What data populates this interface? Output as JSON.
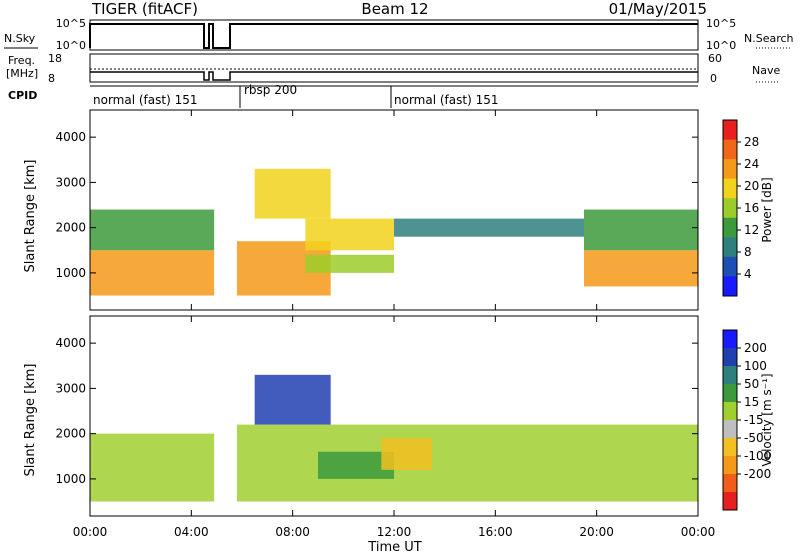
{
  "header": {
    "title_left": "TIGER (fitACF)",
    "title_center": "Beam 12",
    "title_right": "01/May/2015"
  },
  "top_panels": {
    "nsky": {
      "label": "N.Sky",
      "ticks": [
        "10^5",
        "10^0"
      ],
      "right_ticks": [
        "10^5",
        "10^0"
      ],
      "right_label": "N.Search"
    },
    "freq": {
      "label_line1": "Freq.",
      "label_line2": "[MHz]",
      "ticks": [
        "18",
        "8"
      ],
      "right_ticks": [
        "60",
        "0"
      ],
      "right_label": "Nave"
    },
    "cpid": {
      "label": "CPID",
      "segments": [
        "normal (fast) 151",
        "rbsp 200",
        "normal (fast) 151"
      ]
    }
  },
  "colors": {
    "power": [
      "#1a1aff",
      "#1e4fb4",
      "#2f7f7f",
      "#3c9a3c",
      "#9ccc2a",
      "#f2d21c",
      "#f59a18",
      "#f2661a",
      "#e81f1f"
    ],
    "velocity": [
      "#1a1aff",
      "#2040b0",
      "#2f7f7f",
      "#3c9a3c",
      "#a0d030",
      "#bfbfbf",
      "#f2c020",
      "#f59a18",
      "#f25c1a",
      "#e81f1f"
    ]
  },
  "chart_data": [
    {
      "type": "heatmap",
      "panel": "power",
      "ylabel": "Slant Range [km]",
      "ylim": [
        180,
        4600
      ],
      "yticks": [
        "1000",
        "2000",
        "3000",
        "4000"
      ],
      "colorbar_label": "Power [dB]",
      "colorbar_ticks": [
        "4",
        "8",
        "12",
        "16",
        "20",
        "24",
        "28"
      ],
      "colorbar_range": [
        0,
        32
      ],
      "regions": [
        {
          "t0": 0.0,
          "t1": 4.9,
          "r0": 500,
          "r1": 1500,
          "value": 24
        },
        {
          "t0": 0.0,
          "t1": 4.9,
          "r0": 1500,
          "r1": 2400,
          "value": 12
        },
        {
          "t0": 5.8,
          "t1": 9.5,
          "r0": 500,
          "r1": 1700,
          "value": 24
        },
        {
          "t0": 6.5,
          "t1": 9.5,
          "r0": 2200,
          "r1": 3300,
          "value": 20
        },
        {
          "t0": 8.5,
          "t1": 12.0,
          "r0": 1500,
          "r1": 2200,
          "value": 20
        },
        {
          "t0": 8.5,
          "t1": 12.0,
          "r0": 1000,
          "r1": 1400,
          "value": 16
        },
        {
          "t0": 12.0,
          "t1": 19.5,
          "r0": 1800,
          "r1": 2200,
          "value": 8
        },
        {
          "t0": 19.5,
          "t1": 24.0,
          "r0": 700,
          "r1": 1500,
          "value": 24
        },
        {
          "t0": 19.5,
          "t1": 24.0,
          "r0": 1500,
          "r1": 2400,
          "value": 12
        }
      ]
    },
    {
      "type": "heatmap",
      "panel": "velocity",
      "ylabel": "Slant Range [km]",
      "ylim": [
        180,
        4600
      ],
      "yticks": [
        "1000",
        "2000",
        "3000",
        "4000"
      ],
      "xlabel": "Time UT",
      "xticks": [
        "00:00",
        "04:00",
        "08:00",
        "12:00",
        "16:00",
        "20:00",
        "00:00"
      ],
      "xlim": [
        0,
        24
      ],
      "colorbar_label": "Velocity [m s⁻¹]",
      "colorbar_ticks": [
        "200",
        "100",
        "50",
        "15",
        "-15",
        "-50",
        "-100",
        "-200"
      ],
      "colorbar_range": [
        -250,
        250
      ],
      "regions": [
        {
          "t0": 0.0,
          "t1": 4.9,
          "r0": 500,
          "r1": 2000,
          "value": 0
        },
        {
          "t0": 5.8,
          "t1": 24.0,
          "r0": 500,
          "r1": 2200,
          "value": 0
        },
        {
          "t0": 6.5,
          "t1": 9.5,
          "r0": 2200,
          "r1": 3300,
          "value": 150
        },
        {
          "t0": 9.0,
          "t1": 12.0,
          "r0": 1000,
          "r1": 1600,
          "value": 50
        },
        {
          "t0": 11.5,
          "t1": 13.5,
          "r0": 1200,
          "r1": 1900,
          "value": -60
        }
      ]
    }
  ]
}
